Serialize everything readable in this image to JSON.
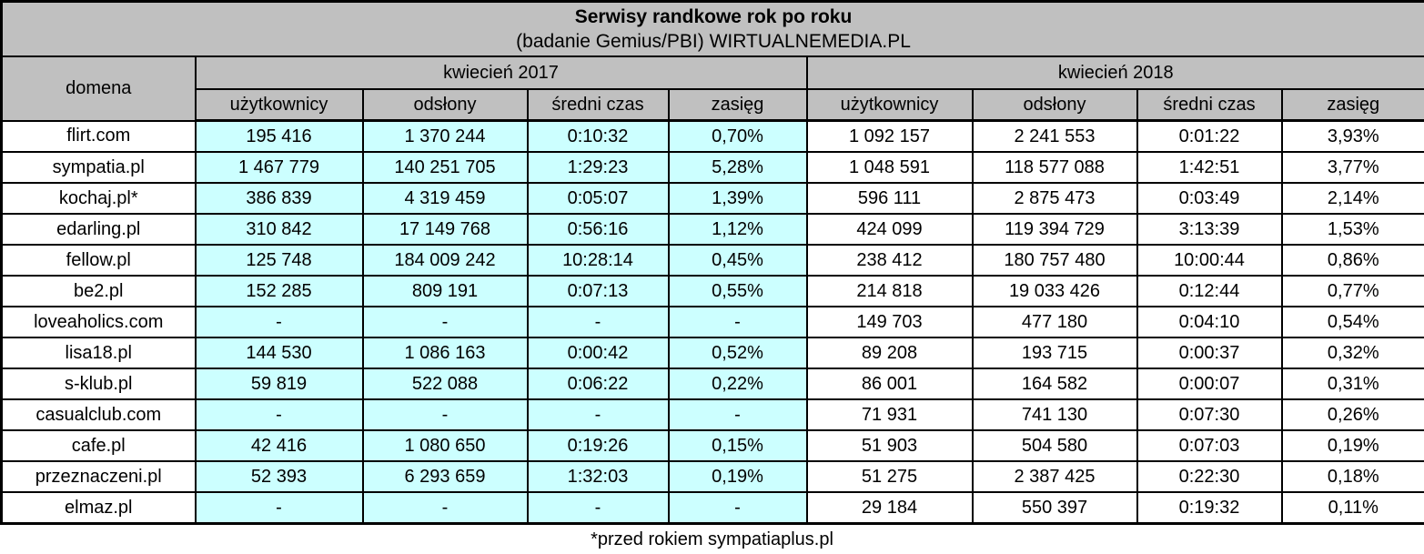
{
  "colors": {
    "header_bg": "#C0C0C0",
    "cells_2017_bg": "#CCFFFF",
    "cells_2018_bg": "#FFFFFF",
    "border": "#000000"
  },
  "chart_data": {
    "type": "table",
    "title": "Serwisy randkowe rok po roku",
    "subtitle": "(badanie Gemius/PBI) WIRTUALNEMEDIA.PL",
    "footnote": "*przed rokiem sympatiaplus.pl",
    "domain_header": "domena",
    "groups": [
      {
        "label": "kwiecień 2017",
        "columns": [
          "użytkownicy",
          "odsłony",
          "średni czas",
          "zasięg"
        ]
      },
      {
        "label": "kwiecień 2018",
        "columns": [
          "użytkownicy",
          "odsłony",
          "średni czas",
          "zasięg"
        ]
      }
    ],
    "rows": [
      {
        "domain": "flirt.com",
        "y2017": [
          "195 416",
          "1 370 244",
          "0:10:32",
          "0,70%"
        ],
        "y2018": [
          "1 092 157",
          "2 241 553",
          "0:01:22",
          "3,93%"
        ]
      },
      {
        "domain": "sympatia.pl",
        "y2017": [
          "1 467 779",
          "140 251 705",
          "1:29:23",
          "5,28%"
        ],
        "y2018": [
          "1 048 591",
          "118 577 088",
          "1:42:51",
          "3,77%"
        ]
      },
      {
        "domain": "kochaj.pl*",
        "y2017": [
          "386 839",
          "4 319 459",
          "0:05:07",
          "1,39%"
        ],
        "y2018": [
          "596 111",
          "2 875 473",
          "0:03:49",
          "2,14%"
        ]
      },
      {
        "domain": "edarling.pl",
        "y2017": [
          "310 842",
          "17 149 768",
          "0:56:16",
          "1,12%"
        ],
        "y2018": [
          "424 099",
          "119 394 729",
          "3:13:39",
          "1,53%"
        ]
      },
      {
        "domain": "fellow.pl",
        "y2017": [
          "125 748",
          "184 009 242",
          "10:28:14",
          "0,45%"
        ],
        "y2018": [
          "238 412",
          "180 757 480",
          "10:00:44",
          "0,86%"
        ]
      },
      {
        "domain": "be2.pl",
        "y2017": [
          "152 285",
          "809 191",
          "0:07:13",
          "0,55%"
        ],
        "y2018": [
          "214 818",
          "19 033 426",
          "0:12:44",
          "0,77%"
        ]
      },
      {
        "domain": "loveaholics.com",
        "y2017": [
          "-",
          "-",
          "-",
          "-"
        ],
        "y2018": [
          "149 703",
          "477 180",
          "0:04:10",
          "0,54%"
        ]
      },
      {
        "domain": "lisa18.pl",
        "y2017": [
          "144 530",
          "1 086 163",
          "0:00:42",
          "0,52%"
        ],
        "y2018": [
          "89 208",
          "193 715",
          "0:00:37",
          "0,32%"
        ]
      },
      {
        "domain": "s-klub.pl",
        "y2017": [
          "59 819",
          "522 088",
          "0:06:22",
          "0,22%"
        ],
        "y2018": [
          "86 001",
          "164 582",
          "0:00:07",
          "0,31%"
        ]
      },
      {
        "domain": "casualclub.com",
        "y2017": [
          "-",
          "-",
          "-",
          "-"
        ],
        "y2018": [
          "71 931",
          "741 130",
          "0:07:30",
          "0,26%"
        ]
      },
      {
        "domain": "cafe.pl",
        "y2017": [
          "42 416",
          "1 080 650",
          "0:19:26",
          "0,15%"
        ],
        "y2018": [
          "51 903",
          "504 580",
          "0:07:03",
          "0,19%"
        ]
      },
      {
        "domain": "przeznaczeni.pl",
        "y2017": [
          "52 393",
          "6 293 659",
          "1:32:03",
          "0,19%"
        ],
        "y2018": [
          "51 275",
          "2 387 425",
          "0:22:30",
          "0,18%"
        ]
      },
      {
        "domain": "elmaz.pl",
        "y2017": [
          "-",
          "-",
          "-",
          "-"
        ],
        "y2018": [
          "29 184",
          "550 397",
          "0:19:32",
          "0,11%"
        ]
      }
    ]
  }
}
